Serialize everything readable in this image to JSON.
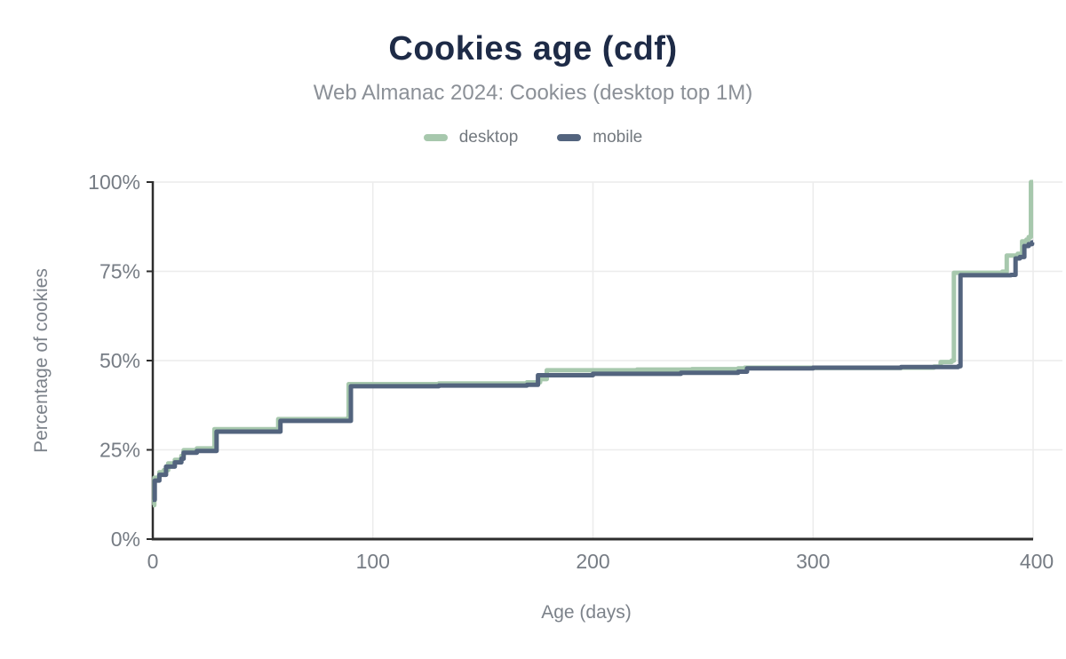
{
  "header": {
    "title": "Cookies age (cdf)",
    "subtitle": "Web Almanac 2024: Cookies (desktop top 1M)"
  },
  "legend": {
    "items": [
      {
        "label": "desktop",
        "color": "#a7c8ad"
      },
      {
        "label": "mobile",
        "color": "#53647e"
      }
    ]
  },
  "colors": {
    "title": "#1e2b47",
    "subtitle": "#8b9097",
    "tick_label": "#767c84",
    "axis_title": "#7c828a",
    "axis_line": "#2d2d2d",
    "gridline": "#ececec",
    "desktop": "#a7c8ad",
    "mobile": "#53647e"
  },
  "chart_data": {
    "type": "line",
    "title": "Cookies age (cdf)",
    "subtitle": "Web Almanac 2024: Cookies (desktop top 1M)",
    "xlabel": "Age (days)",
    "ylabel": "Percentage of cookies",
    "x_range": [
      0,
      400
    ],
    "y_range": [
      0,
      100
    ],
    "x_ticks": [
      0,
      100,
      200,
      300,
      400
    ],
    "y_ticks": [
      0,
      25,
      50,
      75,
      100
    ],
    "y_tick_suffix": "%",
    "x_tick_suffix": "",
    "grid": true,
    "legend_position": "top",
    "interpolation": "step-after",
    "series": [
      {
        "name": "desktop",
        "color": "#a7c8ad",
        "points": [
          [
            0,
            9.5
          ],
          [
            0.7,
            17.2
          ],
          [
            3,
            18.7
          ],
          [
            5,
            19.3
          ],
          [
            7,
            21.2
          ],
          [
            10,
            22.2
          ],
          [
            13,
            23.3
          ],
          [
            14,
            24.9
          ],
          [
            20,
            25.4
          ],
          [
            28,
            30.8
          ],
          [
            57,
            33.6
          ],
          [
            88,
            33.7
          ],
          [
            89,
            43.4
          ],
          [
            130,
            43.6
          ],
          [
            170,
            43.9
          ],
          [
            176,
            44.8
          ],
          [
            179,
            47.3
          ],
          [
            220,
            47.5
          ],
          [
            245,
            47.6
          ],
          [
            266,
            47.8
          ],
          [
            269,
            48.0
          ],
          [
            300,
            47.9
          ],
          [
            340,
            48.0
          ],
          [
            355,
            48.3
          ],
          [
            358,
            49.6
          ],
          [
            363,
            50.0
          ],
          [
            364,
            74.6
          ],
          [
            386,
            74.9
          ],
          [
            388,
            79.4
          ],
          [
            393,
            79.9
          ],
          [
            395,
            83.4
          ],
          [
            397,
            83.9
          ],
          [
            398,
            84.6
          ],
          [
            399,
            100
          ],
          [
            400,
            100
          ]
        ]
      },
      {
        "name": "mobile",
        "color": "#53647e",
        "points": [
          [
            0,
            11
          ],
          [
            0.9,
            16.4
          ],
          [
            3,
            18.0
          ],
          [
            6,
            20.3
          ],
          [
            10,
            21.5
          ],
          [
            13,
            22.5
          ],
          [
            14,
            24.2
          ],
          [
            20,
            24.7
          ],
          [
            29,
            30.1
          ],
          [
            58,
            33.1
          ],
          [
            90,
            42.8
          ],
          [
            130,
            43.0
          ],
          [
            170,
            43.2
          ],
          [
            175,
            45.9
          ],
          [
            200,
            46.3
          ],
          [
            240,
            46.6
          ],
          [
            266,
            46.9
          ],
          [
            270,
            47.8
          ],
          [
            300,
            48.0
          ],
          [
            340,
            48.2
          ],
          [
            366,
            48.4
          ],
          [
            367,
            73.9
          ],
          [
            390,
            74.0
          ],
          [
            392,
            78.6
          ],
          [
            394,
            79.0
          ],
          [
            396,
            82.1
          ],
          [
            398,
            82.6
          ],
          [
            399.5,
            83.1
          ],
          [
            400,
            83.1
          ]
        ]
      }
    ]
  }
}
